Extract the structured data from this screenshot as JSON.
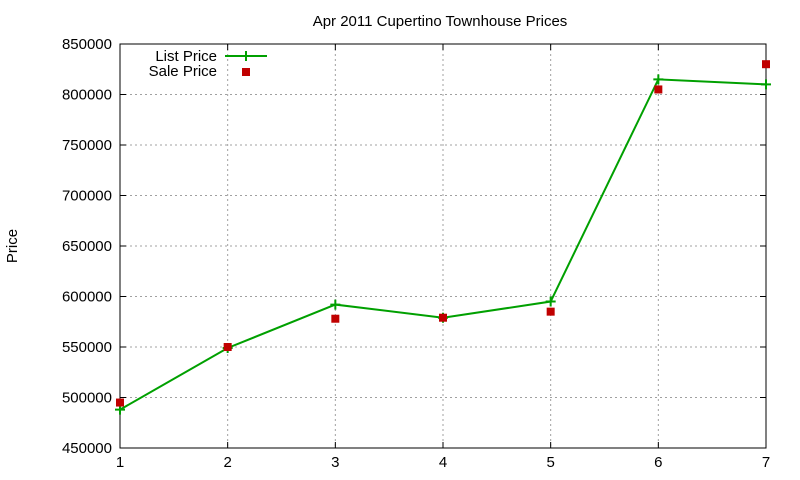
{
  "chart_data": {
    "type": "line",
    "title": "Apr 2011 Cupertino Townhouse Prices",
    "xlabel": "",
    "ylabel": "Price",
    "x": [
      1,
      2,
      3,
      4,
      5,
      6,
      7
    ],
    "xlim": [
      1,
      7
    ],
    "ylim": [
      450000,
      850000
    ],
    "xticks": [
      "1",
      "2",
      "3",
      "4",
      "5",
      "6",
      "7"
    ],
    "yticks": [
      "450000",
      "500000",
      "550000",
      "600000",
      "650000",
      "700000",
      "750000",
      "800000",
      "850000"
    ],
    "grid": true,
    "legend_position": "top-left",
    "series": [
      {
        "name": "List Price",
        "style": "line+cross",
        "color": "#00a000",
        "values": [
          488000,
          549000,
          592000,
          579000,
          595000,
          815000,
          810000
        ]
      },
      {
        "name": "Sale Price",
        "style": "square-points",
        "color": "#c00000",
        "values": [
          495000,
          550000,
          578000,
          579000,
          585000,
          805000,
          830000
        ]
      }
    ]
  }
}
